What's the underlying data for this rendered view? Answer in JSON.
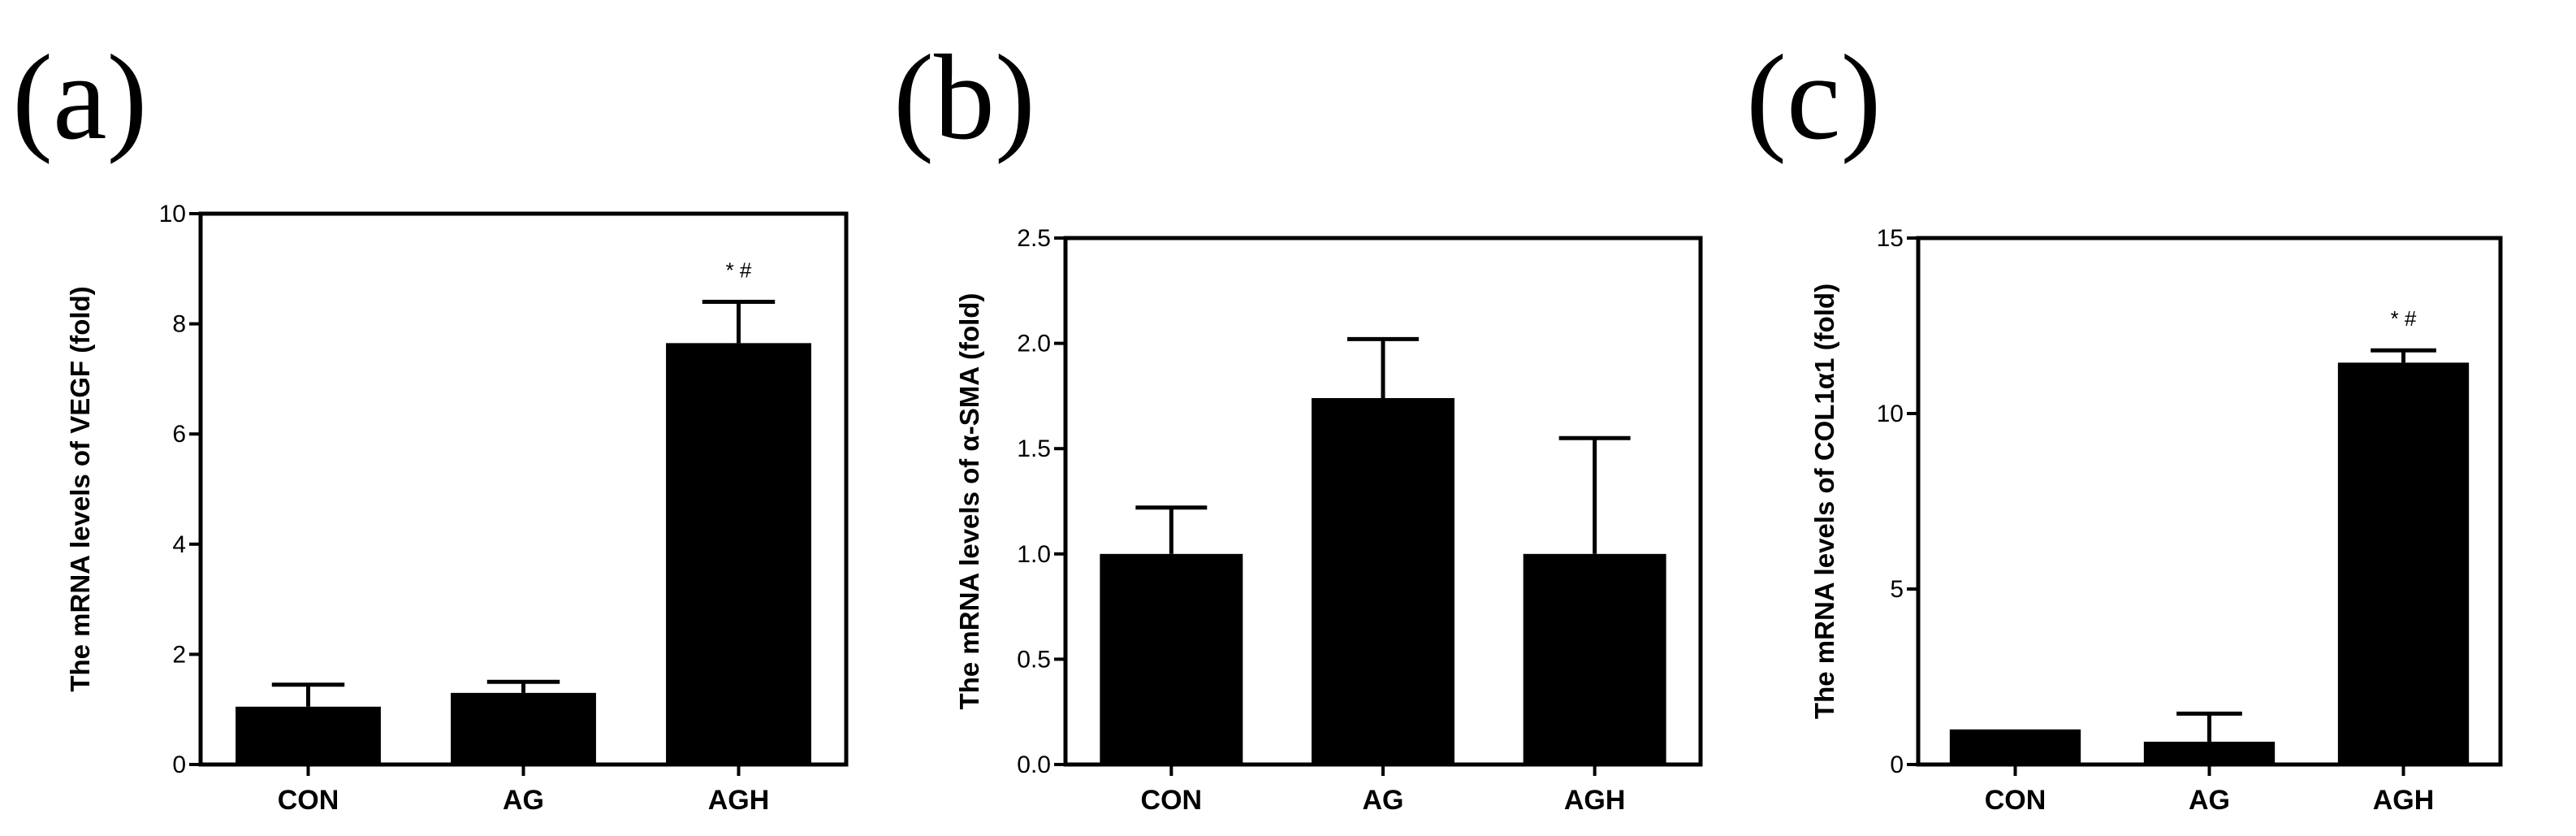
{
  "chart_data": [
    {
      "panel_label": "(a)",
      "type": "bar",
      "categories": [
        "CON",
        "AG",
        "AGH"
      ],
      "values": [
        1.05,
        1.3,
        7.65
      ],
      "error_upper": [
        1.45,
        1.5,
        8.4
      ],
      "annotations": [
        "",
        "",
        "* #"
      ],
      "ylabel": "The mRNA levels of VEGF (fold)",
      "xlabel": "",
      "ylim": [
        0,
        10
      ],
      "yticks": [
        "0",
        "2",
        "4",
        "6",
        "8",
        "10"
      ],
      "ytick_values": [
        0,
        2,
        4,
        6,
        8,
        10
      ],
      "grid": false,
      "bar_color": "#000000"
    },
    {
      "panel_label": "(b)",
      "type": "bar",
      "categories": [
        "CON",
        "AG",
        "AGH"
      ],
      "values": [
        1.0,
        1.74,
        1.0
      ],
      "error_upper": [
        1.22,
        2.02,
        1.55
      ],
      "annotations": [
        "",
        "",
        ""
      ],
      "ylabel": "The mRNA levels of  α-SMA (fold)",
      "xlabel": "",
      "ylim": [
        0,
        2.5
      ],
      "yticks": [
        "0.0",
        "0.5",
        "1.0",
        "1.5",
        "2.0",
        "2.5"
      ],
      "ytick_values": [
        0,
        0.5,
        1.0,
        1.5,
        2.0,
        2.5
      ],
      "grid": false,
      "bar_color": "#000000"
    },
    {
      "panel_label": "(c)",
      "type": "bar",
      "categories": [
        "CON",
        "AG",
        "AGH"
      ],
      "values": [
        1.0,
        0.65,
        11.45
      ],
      "error_upper": [
        1.0,
        1.45,
        11.8
      ],
      "annotations": [
        "",
        "",
        "* #"
      ],
      "ylabel": "The mRNA levels of  COL1α1 (fold)",
      "xlabel": "",
      "ylim": [
        0,
        15
      ],
      "yticks": [
        "0",
        "5",
        "10",
        "15"
      ],
      "ytick_values": [
        0,
        5,
        10,
        15
      ],
      "grid": false,
      "bar_color": "#000000"
    }
  ]
}
